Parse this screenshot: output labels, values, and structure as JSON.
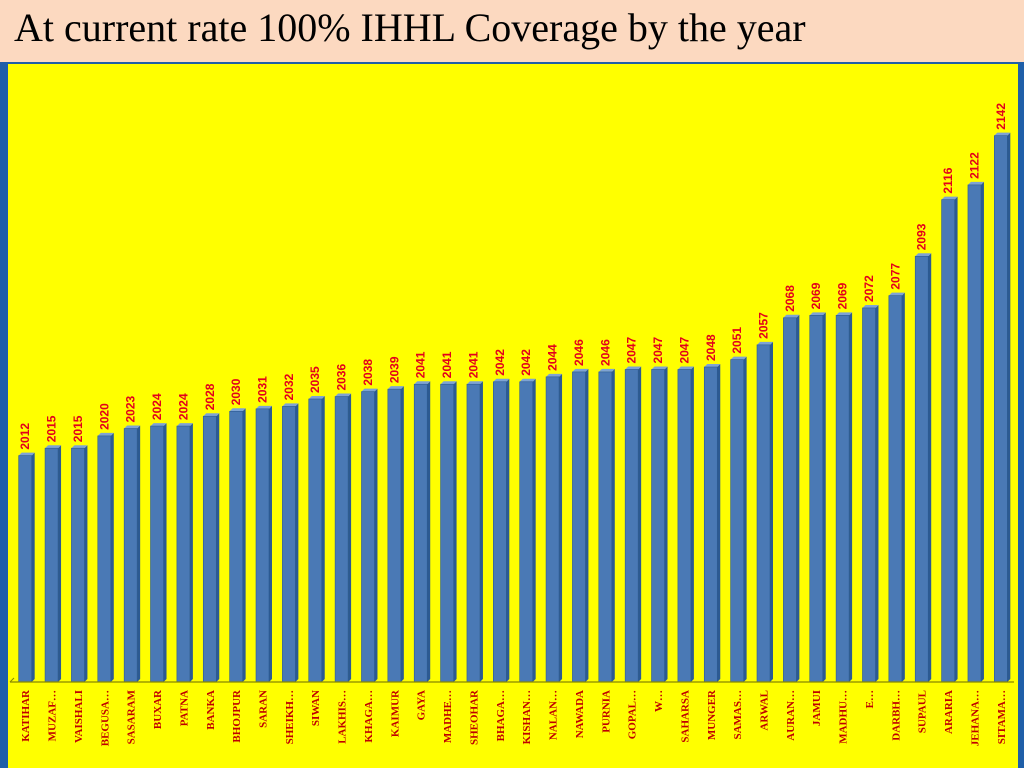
{
  "slide": {
    "title": "At current rate 100% IHHL Coverage by the year",
    "background": "#ffffff",
    "title_band_color": "#fcd9c0"
  },
  "chart_data": {
    "type": "bar",
    "title": "",
    "xlabel": "",
    "ylabel": "",
    "ylim": [
      1920,
      2150
    ],
    "grid": false,
    "legend": "none",
    "categories": [
      "KATIHAR",
      "MUZAF…",
      "VAISHALI",
      "BEGUSA…",
      "SASARAM",
      "BUXAR",
      "PATNA",
      "BANKA",
      "BHOJPUR",
      "SARAN",
      "SHEIKH…",
      "SIWAN",
      "LAKHIS…",
      "KHAGA…",
      "KAIMUR",
      "GAYA",
      "MADHE…",
      "SHEOHAR",
      "BHAGA…",
      "KISHAN…",
      "NALAN…",
      "NAWADA",
      "PURNIA",
      "GOPAL…",
      "W…",
      "SAHARSA",
      "MUNGER",
      "SAMAS…",
      "ARWAL",
      "AURAN…",
      "JAMUI",
      "MADHU…",
      "E…",
      "DARBH…",
      "SUPAUL",
      "ARARIA",
      "JEHANA…",
      "SITAMA…"
    ],
    "values": [
      2012,
      2015,
      2015,
      2020,
      2023,
      2024,
      2024,
      2028,
      2030,
      2031,
      2032,
      2035,
      2036,
      2038,
      2039,
      2041,
      2041,
      2041,
      2042,
      2042,
      2044,
      2046,
      2046,
      2047,
      2047,
      2047,
      2048,
      2051,
      2057,
      2068,
      2069,
      2069,
      2072,
      2077,
      2093,
      2116,
      2122,
      2142
    ],
    "data_labels": [
      "2012",
      "2015",
      "2015",
      "2020",
      "2023",
      "2024",
      "2024",
      "2028",
      "2030",
      "2031",
      "2032",
      "2035",
      "2036",
      "2038",
      "2039",
      "2041",
      "2041",
      "2041",
      "2042",
      "2042",
      "2044",
      "2046",
      "2046",
      "2047",
      "2047",
      "2047",
      "2048",
      "2051",
      "2057",
      "2068",
      "2069",
      "2069",
      "2072",
      "2077",
      "2093",
      "2116",
      "2122",
      "2142"
    ],
    "colors": {
      "plot_background": "#ffff00",
      "bar_fill": "#4a79b5",
      "bar_edge": "#2c5a92",
      "bar_highlight": "#7ea3d4",
      "data_label": "#e3001b",
      "axis": "#888800",
      "category_label": "#c00000",
      "plot_border": "#1f5fa8"
    }
  }
}
